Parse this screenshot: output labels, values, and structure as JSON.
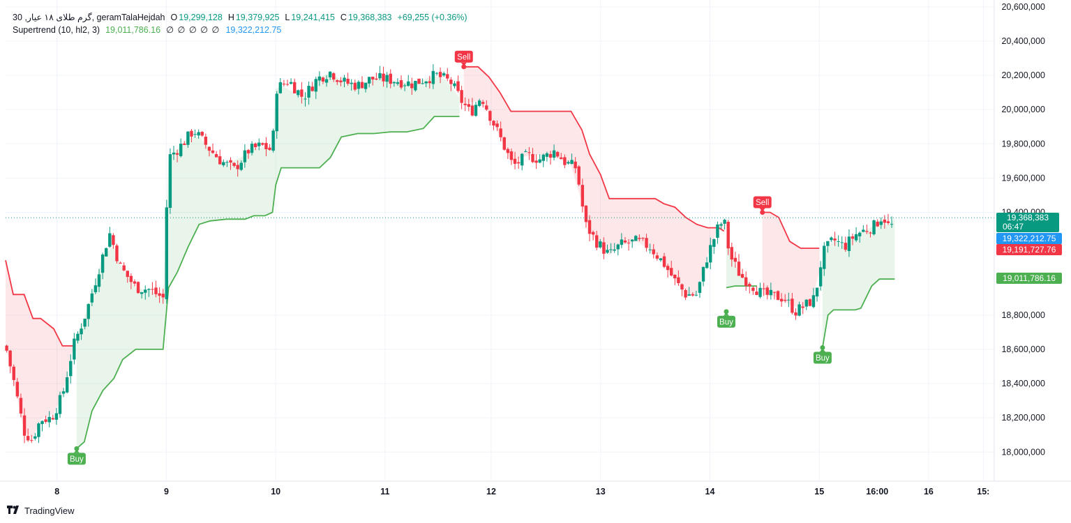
{
  "legend": {
    "symbol": "30 ,گرم طلای ۱۸ عیار, geramTalaHejdah",
    "open_label": "O",
    "open": "19,299,128",
    "high_label": "H",
    "high": "19,379,925",
    "low_label": "L",
    "low": "19,241,415",
    "close_label": "C",
    "close": "19,368,383",
    "change": "+69,255 (+0.36%)",
    "indicator": "Supertrend (10, hl2, 3)",
    "st_up_value": "19,011,786.16",
    "st_na": "∅ ∅ ∅ ∅ ∅",
    "st_down_value": "19,322,212.75"
  },
  "price_labels": {
    "last_price": "19,368,383",
    "countdown": "06:47",
    "blue_label": "19,322,212.75",
    "red_label": "19,191,727.76",
    "green_label": "19,011,786.16"
  },
  "signals": {
    "buy": "Buy",
    "sell": "Sell"
  },
  "brand": {
    "name": "TradingView"
  },
  "colors": {
    "up": "#089981",
    "down": "#f23645",
    "st_up": "#4caf50",
    "st_down": "#f23645",
    "grid": "#f0f3fa",
    "blue": "#2196f3"
  },
  "chart_data": {
    "type": "candlestick",
    "interval": "30",
    "y_ticks": [
      "20,600,000",
      "20,400,000",
      "20,200,000",
      "20,000,000",
      "19,800,000",
      "19,600,000",
      "19,400,000",
      "18,800,000",
      "18,600,000",
      "18,400,000",
      "18,200,000",
      "18,000,000"
    ],
    "y_tick_values": [
      20600000,
      20400000,
      20200000,
      20000000,
      19800000,
      19600000,
      19400000,
      18800000,
      18600000,
      18400000,
      18200000,
      18000000
    ],
    "ylim": [
      17830000,
      20640000
    ],
    "x_ticks": [
      "8",
      "9",
      "10",
      "11",
      "12",
      "13",
      "14",
      "15",
      "16:00",
      "16",
      "15:"
    ],
    "x_tick_values": [
      8.0,
      9.0,
      10.0,
      11.0,
      11.97,
      12.97,
      13.97,
      14.97,
      15.5,
      15.97,
      16.47
    ],
    "xlim": [
      7.53,
      16.57
    ],
    "close_path": [
      [
        7.53,
        18620000
      ],
      [
        7.6,
        18430000
      ],
      [
        7.7,
        18120000
      ],
      [
        7.77,
        18070000
      ],
      [
        7.85,
        18190000
      ],
      [
        7.95,
        18200000
      ],
      [
        8.05,
        18330000
      ],
      [
        8.15,
        18620000
      ],
      [
        8.27,
        18820000
      ],
      [
        8.38,
        19060000
      ],
      [
        8.48,
        19280000
      ],
      [
        8.58,
        19080000
      ],
      [
        8.72,
        18960000
      ],
      [
        8.84,
        18950000
      ],
      [
        8.97,
        18900000
      ],
      [
        9.02,
        19720000
      ],
      [
        9.12,
        19780000
      ],
      [
        9.25,
        19880000
      ],
      [
        9.38,
        19780000
      ],
      [
        9.5,
        19700000
      ],
      [
        9.62,
        19650000
      ],
      [
        9.75,
        19760000
      ],
      [
        9.87,
        19790000
      ],
      [
        9.97,
        19760000
      ],
      [
        10.0,
        20120000
      ],
      [
        10.12,
        20170000
      ],
      [
        10.25,
        20070000
      ],
      [
        10.38,
        20180000
      ],
      [
        10.5,
        20220000
      ],
      [
        10.62,
        20160000
      ],
      [
        10.75,
        20140000
      ],
      [
        10.87,
        20180000
      ],
      [
        10.97,
        20180000
      ],
      [
        11.1,
        20170000
      ],
      [
        11.25,
        20150000
      ],
      [
        11.37,
        20180000
      ],
      [
        11.47,
        20200000
      ],
      [
        11.6,
        20160000
      ],
      [
        11.7,
        20050000
      ],
      [
        11.78,
        19980000
      ],
      [
        11.88,
        20080000
      ],
      [
        11.97,
        19950000
      ],
      [
        12.05,
        19840000
      ],
      [
        12.17,
        19670000
      ],
      [
        12.3,
        19730000
      ],
      [
        12.42,
        19710000
      ],
      [
        12.55,
        19760000
      ],
      [
        12.65,
        19690000
      ],
      [
        12.75,
        19660000
      ],
      [
        12.83,
        19330000
      ],
      [
        12.93,
        19230000
      ],
      [
        13.05,
        19150000
      ],
      [
        13.15,
        19210000
      ],
      [
        13.3,
        19230000
      ],
      [
        13.42,
        19200000
      ],
      [
        13.55,
        19100000
      ],
      [
        13.65,
        19000000
      ],
      [
        13.75,
        18920000
      ],
      [
        13.85,
        18920000
      ],
      [
        13.95,
        19150000
      ],
      [
        14.05,
        19320000
      ],
      [
        14.1,
        19350000
      ],
      [
        14.15,
        19150000
      ],
      [
        14.25,
        19030000
      ],
      [
        14.35,
        18980000
      ],
      [
        14.45,
        18920000
      ],
      [
        14.55,
        18910000
      ],
      [
        14.65,
        18900000
      ],
      [
        14.75,
        18820000
      ],
      [
        14.85,
        18860000
      ],
      [
        14.93,
        18900000
      ],
      [
        15.0,
        19160000
      ],
      [
        15.1,
        19240000
      ],
      [
        15.2,
        19200000
      ],
      [
        15.3,
        19270000
      ],
      [
        15.4,
        19300000
      ],
      [
        15.47,
        19320000
      ],
      [
        15.55,
        19380000
      ],
      [
        15.62,
        19300000
      ],
      [
        15.66,
        19368383
      ]
    ],
    "supertrend_down": [
      [
        7.53,
        19120000
      ],
      [
        7.6,
        18920000
      ],
      [
        7.7,
        18920000
      ],
      [
        7.78,
        18780000
      ],
      [
        7.85,
        18780000
      ],
      [
        7.97,
        18720000
      ],
      [
        8.05,
        18620000
      ],
      [
        8.15,
        18620000
      ]
    ],
    "supertrend_up_1": [
      [
        8.18,
        18020000
      ],
      [
        8.25,
        18060000
      ],
      [
        8.32,
        18240000
      ],
      [
        8.42,
        18360000
      ],
      [
        8.52,
        18430000
      ],
      [
        8.6,
        18540000
      ],
      [
        8.72,
        18600000
      ],
      [
        8.87,
        18600000
      ],
      [
        8.97,
        18600000
      ],
      [
        9.02,
        18960000
      ],
      [
        9.1,
        19050000
      ],
      [
        9.2,
        19200000
      ],
      [
        9.3,
        19330000
      ],
      [
        9.4,
        19350000
      ],
      [
        9.55,
        19360000
      ],
      [
        9.72,
        19360000
      ],
      [
        9.8,
        19380000
      ],
      [
        9.9,
        19380000
      ],
      [
        9.97,
        19400000
      ],
      [
        10.0,
        19560000
      ],
      [
        10.05,
        19660000
      ],
      [
        10.25,
        19660000
      ],
      [
        10.4,
        19660000
      ],
      [
        10.5,
        19720000
      ],
      [
        10.6,
        19840000
      ],
      [
        10.75,
        19860000
      ],
      [
        10.9,
        19860000
      ],
      [
        11.05,
        19870000
      ],
      [
        11.2,
        19870000
      ],
      [
        11.35,
        19890000
      ],
      [
        11.45,
        19960000
      ],
      [
        11.55,
        19960000
      ],
      [
        11.68,
        19960000
      ]
    ],
    "supertrend_down_2": [
      [
        11.72,
        20250000
      ],
      [
        11.85,
        20250000
      ],
      [
        11.95,
        20190000
      ],
      [
        12.05,
        20100000
      ],
      [
        12.15,
        19990000
      ],
      [
        12.3,
        19990000
      ],
      [
        12.5,
        19990000
      ],
      [
        12.7,
        19990000
      ],
      [
        12.8,
        19880000
      ],
      [
        12.87,
        19740000
      ],
      [
        12.97,
        19620000
      ],
      [
        13.05,
        19480000
      ],
      [
        13.15,
        19480000
      ],
      [
        13.3,
        19480000
      ],
      [
        13.47,
        19480000
      ],
      [
        13.55,
        19450000
      ],
      [
        13.65,
        19430000
      ],
      [
        13.75,
        19370000
      ],
      [
        13.85,
        19330000
      ],
      [
        13.95,
        19310000
      ],
      [
        14.05,
        19310000
      ],
      [
        14.1,
        19290000
      ]
    ],
    "supertrend_up_2": [
      [
        14.12,
        18960000
      ],
      [
        14.2,
        18970000
      ],
      [
        14.3,
        18970000
      ],
      [
        14.4,
        18970000
      ]
    ],
    "supertrend_down_3": [
      [
        14.45,
        19400000
      ],
      [
        14.52,
        19400000
      ],
      [
        14.6,
        19370000
      ],
      [
        14.7,
        19230000
      ],
      [
        14.8,
        19190000
      ],
      [
        14.9,
        19190000
      ],
      [
        14.97,
        19190000
      ]
    ],
    "supertrend_up_3": [
      [
        15.0,
        18610000
      ],
      [
        15.05,
        18800000
      ],
      [
        15.1,
        18830000
      ],
      [
        15.2,
        18830000
      ],
      [
        15.3,
        18830000
      ],
      [
        15.35,
        18840000
      ],
      [
        15.45,
        18970000
      ],
      [
        15.52,
        19010000
      ],
      [
        15.6,
        19010000
      ],
      [
        15.66,
        19010000
      ]
    ],
    "signals": [
      {
        "type": "Buy",
        "x": 8.18,
        "y": 18020000
      },
      {
        "type": "Sell",
        "x": 11.72,
        "y": 20250000
      },
      {
        "type": "Buy",
        "x": 14.12,
        "y": 18820000
      },
      {
        "type": "Sell",
        "x": 14.45,
        "y": 19400000
      },
      {
        "type": "Buy",
        "x": 15.0,
        "y": 18610000
      }
    ],
    "last_price": 19368383
  }
}
